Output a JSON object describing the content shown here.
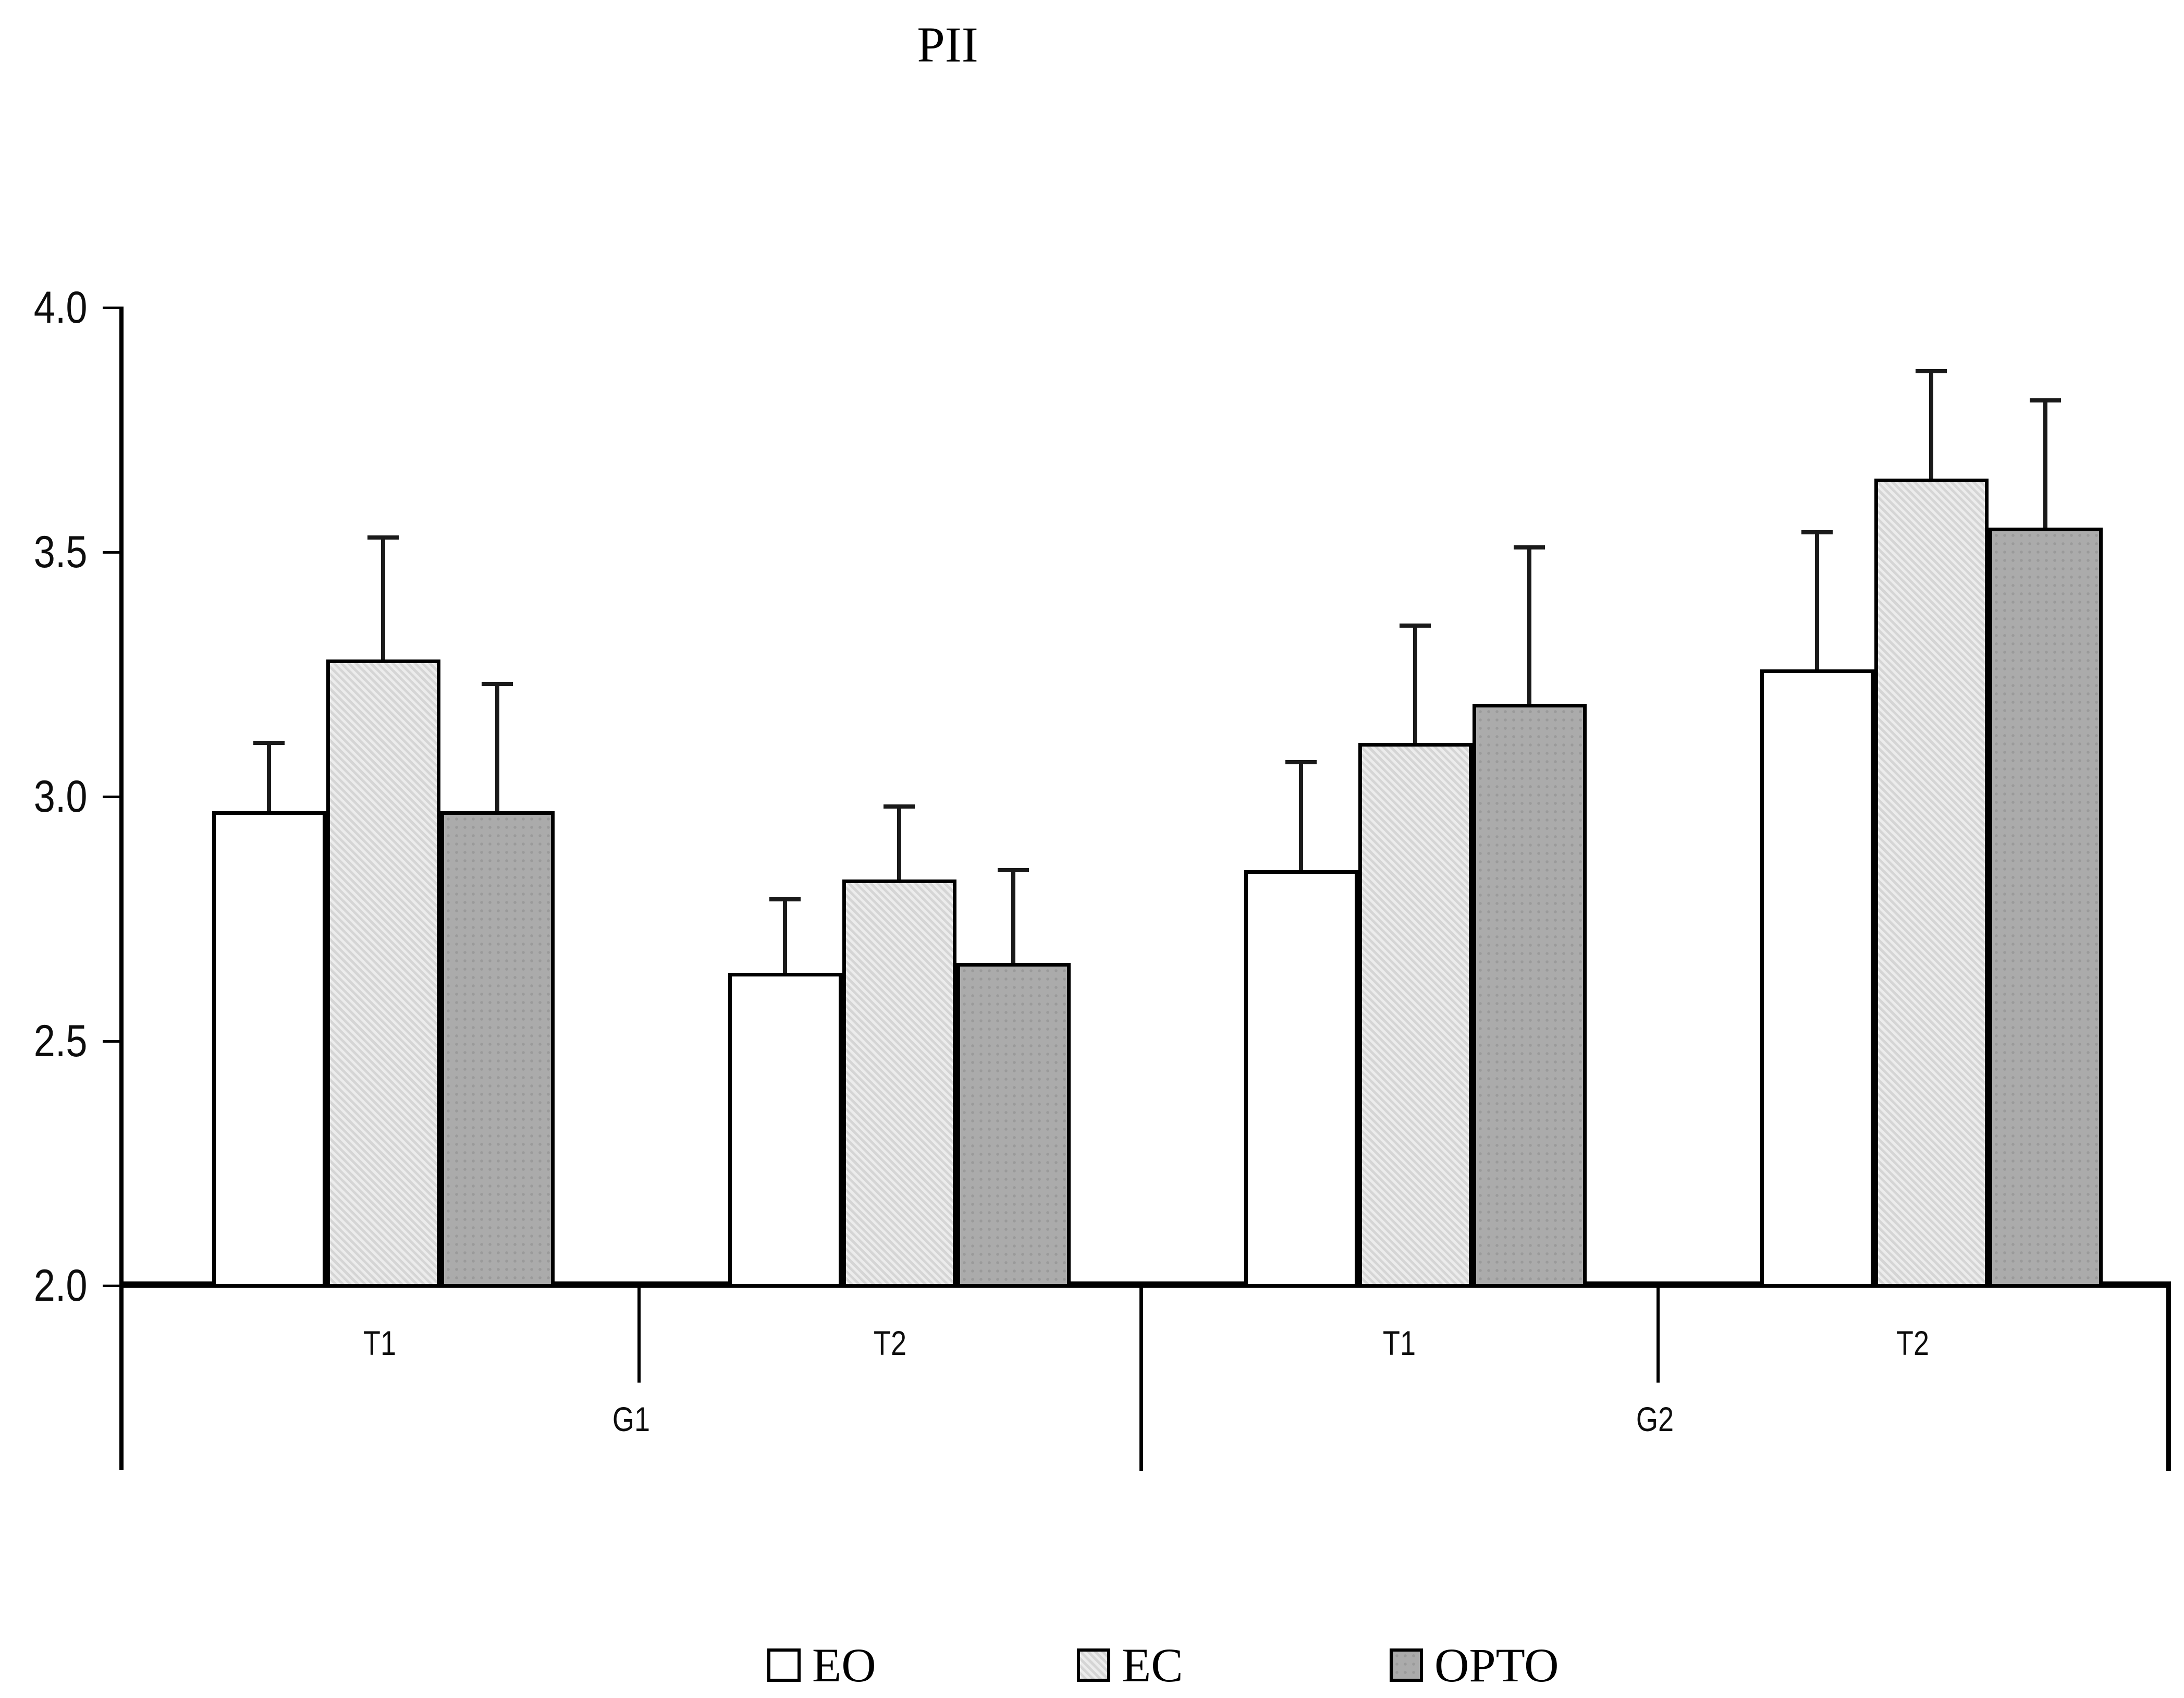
{
  "title": "PII",
  "y_axis": {
    "min": 2.0,
    "max": 4.0,
    "step": 0.5,
    "tick_labels": [
      "4.0",
      "3.5",
      "3.0",
      "2.5",
      "2.0"
    ]
  },
  "legend": {
    "items": [
      {
        "label": "EO",
        "color": "#ffffff",
        "pattern": "plain"
      },
      {
        "label": "EC",
        "color": "#dcdcdc",
        "pattern": "weave"
      },
      {
        "label": "OPTO",
        "color": "#ababab",
        "pattern": "dots"
      }
    ]
  },
  "chart_data": {
    "type": "bar",
    "title": "PII",
    "groups": [
      {
        "label": "G1",
        "times": [
          "T1",
          "T2"
        ]
      },
      {
        "label": "G2",
        "times": [
          "T1",
          "T2"
        ]
      }
    ],
    "categories": [
      "G1-T1",
      "G1-T2",
      "G2-T1",
      "G2-T2"
    ],
    "series": [
      {
        "name": "EO",
        "color": "#ffffff",
        "pattern": "plain",
        "values": [
          2.97,
          2.64,
          2.85,
          3.26
        ],
        "error_up": [
          0.14,
          0.15,
          0.22,
          0.28
        ]
      },
      {
        "name": "EC",
        "color": "#dcdcdc",
        "pattern": "weave",
        "values": [
          3.28,
          2.83,
          3.11,
          3.65
        ],
        "error_up": [
          0.25,
          0.15,
          0.24,
          0.22
        ]
      },
      {
        "name": "OPTO",
        "color": "#ababab",
        "pattern": "dots",
        "values": [
          2.97,
          2.66,
          3.19,
          3.55
        ],
        "error_up": [
          0.26,
          0.19,
          0.32,
          0.26
        ]
      }
    ],
    "ylim": [
      2.0,
      4.0
    ],
    "grid": false,
    "error_bars": "upper-only",
    "legend_position": "bottom"
  }
}
